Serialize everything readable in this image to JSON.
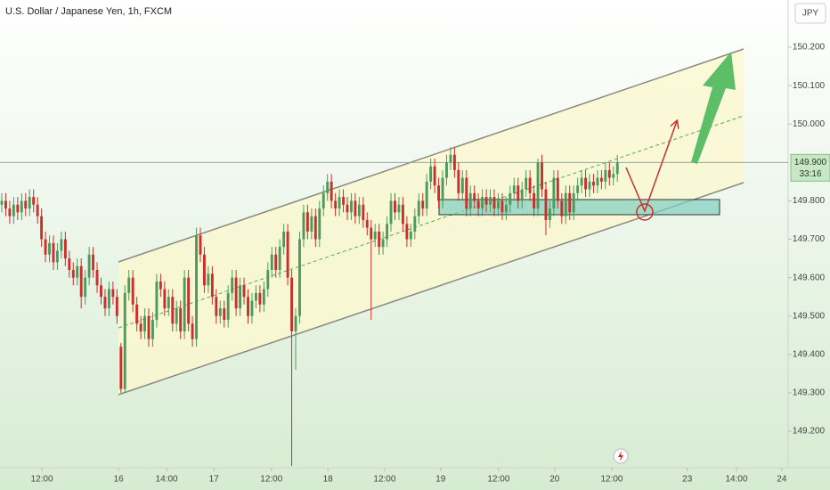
{
  "header": {
    "symbol": "U.S. Dollar / Japanese Yen, 1h, FXCM",
    "currency": "JPY"
  },
  "chart_data": {
    "type": "candlestick",
    "up_color": "#4c9a5e",
    "down_color": "#c9302c",
    "last_price": {
      "value": 149.9,
      "label": "149.900"
    },
    "countdown": "33:16",
    "xlim": [
      -0.45,
      198
    ],
    "ylim": [
      149.105,
      150.323
    ],
    "xticks": [
      {
        "value": 10.1,
        "label": "12:00"
      },
      {
        "value": 29.4,
        "label": "16"
      },
      {
        "value": 41.5,
        "label": "14:00"
      },
      {
        "value": 53.4,
        "label": "17"
      },
      {
        "value": 67.9,
        "label": "12:00"
      },
      {
        "value": 82.1,
        "label": "18"
      },
      {
        "value": 96.4,
        "label": "12:00"
      },
      {
        "value": 110.5,
        "label": "19"
      },
      {
        "value": 125.1,
        "label": "12:00"
      },
      {
        "value": 139.2,
        "label": "20"
      },
      {
        "value": 153.6,
        "label": "12:00"
      },
      {
        "value": 172.6,
        "label": "23"
      },
      {
        "value": 185,
        "label": "14:00"
      },
      {
        "value": 196.4,
        "label": "24"
      }
    ],
    "yticks": [
      {
        "value": 150.2,
        "label": "150.200"
      },
      {
        "value": 150.1,
        "label": "150.100"
      },
      {
        "value": 150.0,
        "label": "150.000"
      },
      {
        "value": 149.8,
        "label": "149.800"
      },
      {
        "value": 149.7,
        "label": "149.700"
      },
      {
        "value": 149.6,
        "label": "149.600"
      },
      {
        "value": 149.5,
        "label": "149.500"
      },
      {
        "value": 149.4,
        "label": "149.400"
      },
      {
        "value": 149.3,
        "label": "149.300"
      },
      {
        "value": 149.2,
        "label": "149.200"
      }
    ],
    "ohlc": [
      [
        149.79,
        149.82,
        149.77,
        149.8
      ],
      [
        149.8,
        149.82,
        149.76,
        149.78
      ],
      [
        149.78,
        149.8,
        149.74,
        149.76
      ],
      [
        149.76,
        149.81,
        149.74,
        149.79
      ],
      [
        149.79,
        149.81,
        149.75,
        149.77
      ],
      [
        149.77,
        149.82,
        149.75,
        149.8
      ],
      [
        149.8,
        149.82,
        149.76,
        149.78
      ],
      [
        149.78,
        149.83,
        149.76,
        149.81
      ],
      [
        149.81,
        149.83,
        149.77,
        149.79
      ],
      [
        149.79,
        149.81,
        149.74,
        149.76
      ],
      [
        149.76,
        149.78,
        149.68,
        149.7
      ],
      [
        149.7,
        149.72,
        149.64,
        149.66
      ],
      [
        149.66,
        149.71,
        149.64,
        149.69
      ],
      [
        149.69,
        149.71,
        149.62,
        149.64
      ],
      [
        149.64,
        149.69,
        149.62,
        149.67
      ],
      [
        149.67,
        149.72,
        149.65,
        149.7
      ],
      [
        149.7,
        149.72,
        149.63,
        149.65
      ],
      [
        149.65,
        149.67,
        149.6,
        149.62
      ],
      [
        149.62,
        149.64,
        149.58,
        149.6
      ],
      [
        149.6,
        149.65,
        149.58,
        149.63
      ],
      [
        149.63,
        149.65,
        149.52,
        149.55
      ],
      [
        149.55,
        149.62,
        149.53,
        149.6
      ],
      [
        149.6,
        149.68,
        149.58,
        149.66
      ],
      [
        149.66,
        149.68,
        149.6,
        149.62
      ],
      [
        149.62,
        149.64,
        149.56,
        149.58
      ],
      [
        149.58,
        149.6,
        149.53,
        149.55
      ],
      [
        149.55,
        149.57,
        149.5,
        149.52
      ],
      [
        149.52,
        149.59,
        149.5,
        149.57
      ],
      [
        149.57,
        149.59,
        149.53,
        149.55
      ],
      [
        149.55,
        149.57,
        149.48,
        149.5
      ],
      [
        149.42,
        149.43,
        149.3,
        149.31
      ],
      [
        149.31,
        149.58,
        149.3,
        149.56
      ],
      [
        149.56,
        149.62,
        149.54,
        149.6
      ],
      [
        149.6,
        149.62,
        149.51,
        149.53
      ],
      [
        149.53,
        149.55,
        149.46,
        149.48
      ],
      [
        149.48,
        149.5,
        149.44,
        149.46
      ],
      [
        149.46,
        149.52,
        149.44,
        149.5
      ],
      [
        149.5,
        149.52,
        149.42,
        149.44
      ],
      [
        149.44,
        149.51,
        149.42,
        149.49
      ],
      [
        149.49,
        149.61,
        149.47,
        149.59
      ],
      [
        149.59,
        149.61,
        149.55,
        149.57
      ],
      [
        149.57,
        149.59,
        149.5,
        149.52
      ],
      [
        149.52,
        149.57,
        149.5,
        149.55
      ],
      [
        149.55,
        149.57,
        149.46,
        149.48
      ],
      [
        149.48,
        149.54,
        149.46,
        149.52
      ],
      [
        149.52,
        149.54,
        149.44,
        149.46
      ],
      [
        149.46,
        149.62,
        149.44,
        149.6
      ],
      [
        149.6,
        149.62,
        149.46,
        149.48
      ],
      [
        149.48,
        149.5,
        149.42,
        149.44
      ],
      [
        149.44,
        149.73,
        149.42,
        149.71
      ],
      [
        149.71,
        149.73,
        149.64,
        149.66
      ],
      [
        149.66,
        149.68,
        149.56,
        149.58
      ],
      [
        149.58,
        149.63,
        149.56,
        149.61
      ],
      [
        149.61,
        149.63,
        149.53,
        149.55
      ],
      [
        149.55,
        149.57,
        149.48,
        149.5
      ],
      [
        149.5,
        149.54,
        149.48,
        149.52
      ],
      [
        149.52,
        149.54,
        149.47,
        149.49
      ],
      [
        149.49,
        149.58,
        149.47,
        149.56
      ],
      [
        149.56,
        149.62,
        149.54,
        149.6
      ],
      [
        149.6,
        149.62,
        149.5,
        149.52
      ],
      [
        149.52,
        149.6,
        149.5,
        149.58
      ],
      [
        149.58,
        149.6,
        149.53,
        149.55
      ],
      [
        149.55,
        149.57,
        149.48,
        149.5
      ],
      [
        149.5,
        149.56,
        149.48,
        149.54
      ],
      [
        149.54,
        149.58,
        149.52,
        149.56
      ],
      [
        149.56,
        149.58,
        149.51,
        149.53
      ],
      [
        149.53,
        149.59,
        149.51,
        149.57
      ],
      [
        149.57,
        149.64,
        149.55,
        149.62
      ],
      [
        149.62,
        149.68,
        149.6,
        149.66
      ],
      [
        149.66,
        149.68,
        149.6,
        149.62
      ],
      [
        149.62,
        149.7,
        149.6,
        149.68
      ],
      [
        149.68,
        149.74,
        149.66,
        149.72
      ],
      [
        149.72,
        149.74,
        149.58,
        149.6
      ],
      [
        149.6,
        149.62,
        149.11,
        149.46
      ],
      [
        149.46,
        149.52,
        149.36,
        149.5
      ],
      [
        149.5,
        149.72,
        149.48,
        149.7
      ],
      [
        149.7,
        149.79,
        149.68,
        149.77
      ],
      [
        149.77,
        149.79,
        149.7,
        149.72
      ],
      [
        149.72,
        149.78,
        149.7,
        149.76
      ],
      [
        149.76,
        149.78,
        149.68,
        149.7
      ],
      [
        149.7,
        149.8,
        149.68,
        149.78
      ],
      [
        149.78,
        149.84,
        149.76,
        149.82
      ],
      [
        149.82,
        149.87,
        149.8,
        149.85
      ],
      [
        149.85,
        149.87,
        149.78,
        149.8
      ],
      [
        149.8,
        149.82,
        149.76,
        149.78
      ],
      [
        149.78,
        149.83,
        149.76,
        149.81
      ],
      [
        149.81,
        149.83,
        149.77,
        149.79
      ],
      [
        149.79,
        149.81,
        149.75,
        149.77
      ],
      [
        149.77,
        149.82,
        149.75,
        149.8
      ],
      [
        149.8,
        149.82,
        149.74,
        149.76
      ],
      [
        149.76,
        149.81,
        149.74,
        149.79
      ],
      [
        149.79,
        149.81,
        149.73,
        149.75
      ],
      [
        149.75,
        149.77,
        149.71,
        149.73
      ],
      [
        149.73,
        149.75,
        149.49,
        149.7
      ],
      [
        149.7,
        149.74,
        149.68,
        149.72
      ],
      [
        149.72,
        149.74,
        149.66,
        149.68
      ],
      [
        149.68,
        149.72,
        149.66,
        149.7
      ],
      [
        149.7,
        149.76,
        149.68,
        149.74
      ],
      [
        149.74,
        149.82,
        149.72,
        149.8
      ],
      [
        149.8,
        149.82,
        149.75,
        149.77
      ],
      [
        149.77,
        149.81,
        149.75,
        149.79
      ],
      [
        149.79,
        149.81,
        149.72,
        149.74
      ],
      [
        149.74,
        149.76,
        149.68,
        149.7
      ],
      [
        149.7,
        149.74,
        149.68,
        149.72
      ],
      [
        149.72,
        149.78,
        149.7,
        149.76
      ],
      [
        149.76,
        149.82,
        149.74,
        149.8
      ],
      [
        149.8,
        149.82,
        149.76,
        149.78
      ],
      [
        149.78,
        149.87,
        149.76,
        149.85
      ],
      [
        149.85,
        149.91,
        149.83,
        149.89
      ],
      [
        149.89,
        149.91,
        149.82,
        149.84
      ],
      [
        149.84,
        149.86,
        149.78,
        149.8
      ],
      [
        149.8,
        149.88,
        149.78,
        149.86
      ],
      [
        149.86,
        149.92,
        149.84,
        149.9
      ],
      [
        149.9,
        149.94,
        149.88,
        149.92
      ],
      [
        149.92,
        149.94,
        149.86,
        149.88
      ],
      [
        149.88,
        149.9,
        149.8,
        149.82
      ],
      [
        149.82,
        149.88,
        149.8,
        149.86
      ],
      [
        149.86,
        149.88,
        149.76,
        149.78
      ],
      [
        149.78,
        149.84,
        149.76,
        149.82
      ],
      [
        149.82,
        149.84,
        149.78,
        149.8
      ],
      [
        149.8,
        149.82,
        149.76,
        149.78
      ],
      [
        149.78,
        149.83,
        149.76,
        149.81
      ],
      [
        149.81,
        149.83,
        149.77,
        149.79
      ],
      [
        149.79,
        149.83,
        149.77,
        149.81
      ],
      [
        149.81,
        149.83,
        149.76,
        149.78
      ],
      [
        149.78,
        149.82,
        149.76,
        149.8
      ],
      [
        149.8,
        149.82,
        149.75,
        149.77
      ],
      [
        149.77,
        149.81,
        149.75,
        149.79
      ],
      [
        149.79,
        149.84,
        149.77,
        149.82
      ],
      [
        149.82,
        149.86,
        149.8,
        149.84
      ],
      [
        149.84,
        149.86,
        149.78,
        149.8
      ],
      [
        149.8,
        149.85,
        149.78,
        149.83
      ],
      [
        149.83,
        149.88,
        149.81,
        149.86
      ],
      [
        149.86,
        149.88,
        149.8,
        149.82
      ],
      [
        149.82,
        149.84,
        149.76,
        149.78
      ],
      [
        149.78,
        149.91,
        149.76,
        149.9
      ],
      [
        149.9,
        149.92,
        149.81,
        149.83
      ],
      [
        149.83,
        149.85,
        149.71,
        149.75
      ],
      [
        149.75,
        149.8,
        149.73,
        149.78
      ],
      [
        149.78,
        149.88,
        149.76,
        149.86
      ],
      [
        149.86,
        149.88,
        149.78,
        149.8
      ],
      [
        149.8,
        149.82,
        149.74,
        149.76
      ],
      [
        149.76,
        149.84,
        149.74,
        149.82
      ],
      [
        149.82,
        149.84,
        149.75,
        149.77
      ],
      [
        149.77,
        149.84,
        149.75,
        149.82
      ],
      [
        149.82,
        149.86,
        149.8,
        149.84
      ],
      [
        149.84,
        149.88,
        149.82,
        149.86
      ],
      [
        149.86,
        149.88,
        149.81,
        149.83
      ],
      [
        149.83,
        149.87,
        149.81,
        149.85
      ],
      [
        149.85,
        149.87,
        149.82,
        149.84
      ],
      [
        149.84,
        149.88,
        149.82,
        149.86
      ],
      [
        149.86,
        149.88,
        149.83,
        149.85
      ],
      [
        149.85,
        149.9,
        149.83,
        149.88
      ],
      [
        149.88,
        149.9,
        149.84,
        149.86
      ],
      [
        149.86,
        149.89,
        149.84,
        149.87
      ],
      [
        149.87,
        149.92,
        149.85,
        149.9
      ]
    ]
  }
}
